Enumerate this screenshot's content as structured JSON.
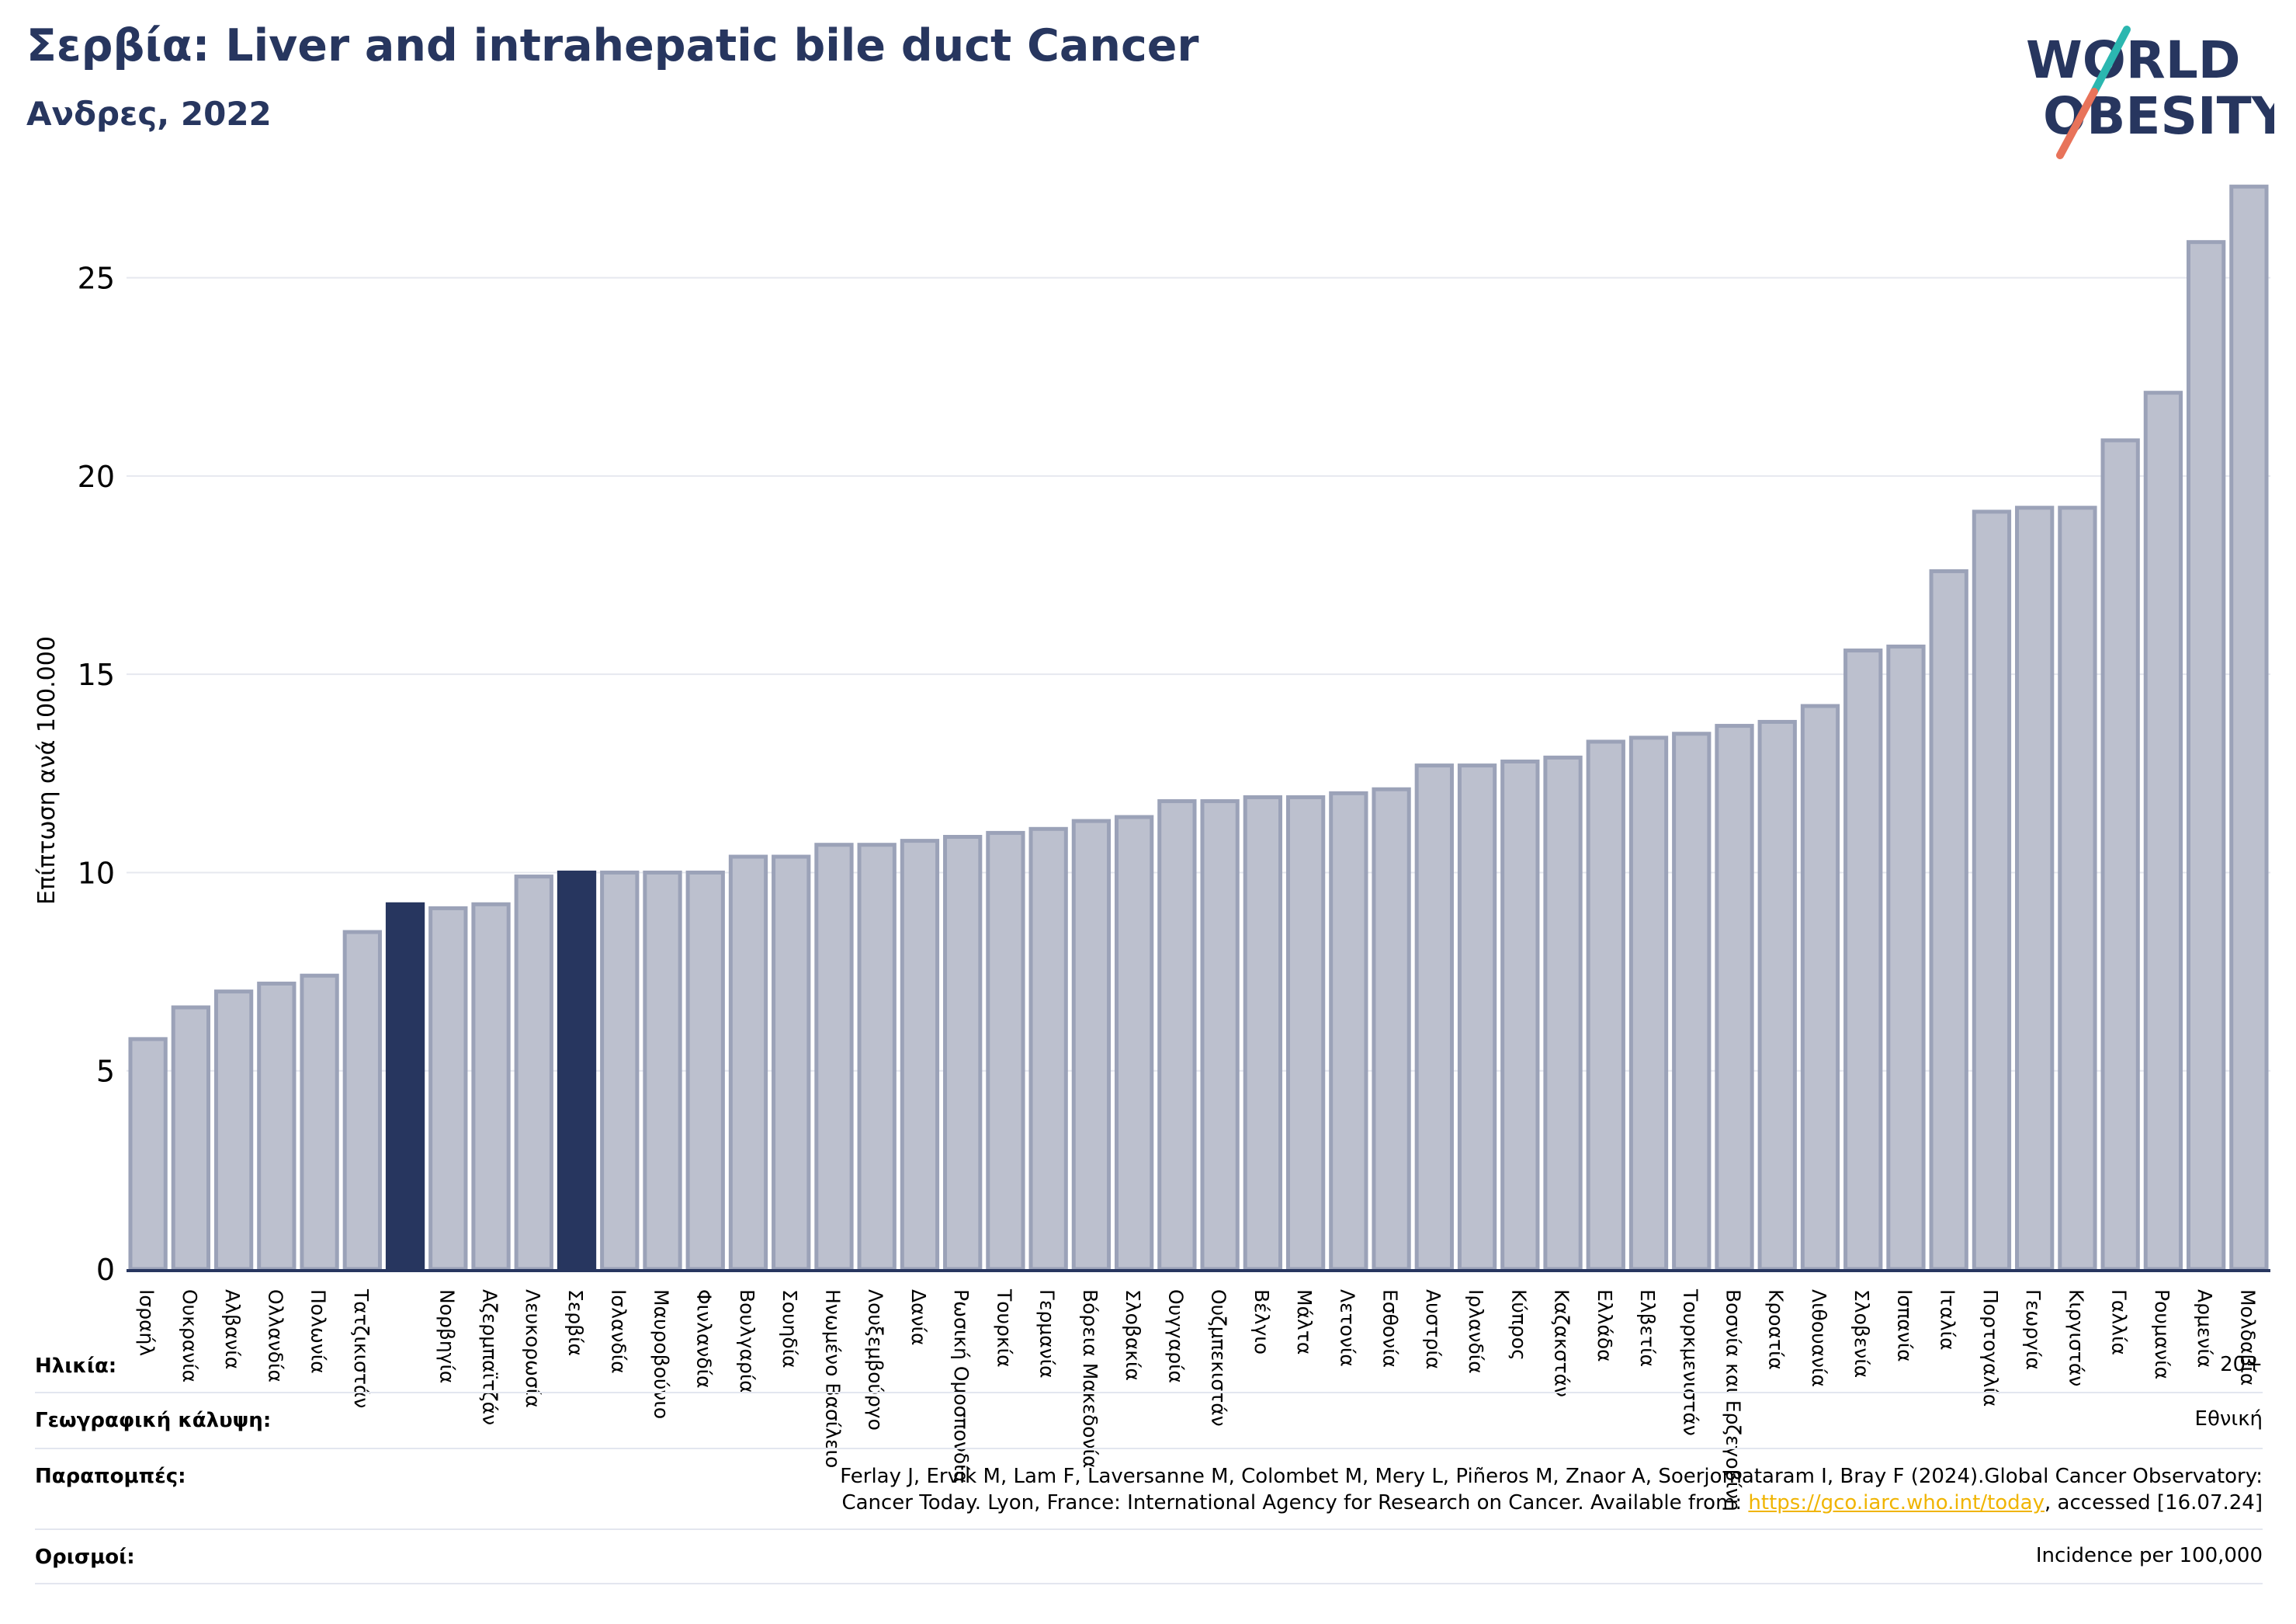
{
  "header": {
    "title": "Σερβία: Liver and intrahepatic bile duct Cancer",
    "subtitle": "Ανδρες, 2022"
  },
  "logo": {
    "line1": "WORLD",
    "line2": "OBESITY"
  },
  "colors": {
    "highlight": "#27365f",
    "bar_fill": "#bcc0ce",
    "bar_stroke": "#9ba2b8",
    "grid": "#e6e8ef",
    "logo_teal": "#2bb7b0",
    "logo_coral": "#e8735a"
  },
  "chart_data": {
    "type": "bar",
    "title": "",
    "xlabel": "",
    "ylabel": "Επίπτωση ανά 100.000",
    "ylim": [
      0,
      27.5
    ],
    "yticks": [
      0,
      5,
      10,
      15,
      20,
      25
    ],
    "grid": true,
    "categories": [
      "Ισραήλ",
      "Ουκρανία",
      "Αλβανία",
      "Ολλανδία",
      "Πολωνία",
      "Τατζικιστάν",
      "",
      "Νορβηγία",
      "Αζερμπαϊτζάν",
      "Λευκορωσία",
      "Σερβία",
      "Ισλανδία",
      "Μαυροβούνιο",
      "Φινλανδία",
      "Βουλγαρία",
      "Σουηδία",
      "Ηνωμένο Βασίλειο",
      "Λουξεμβούργο",
      "Δανία",
      "Ρωσική Ομοσπονδία",
      "Τουρκία",
      "Γερμανία",
      "Βόρεια Μακεδονία",
      "Σλοβακία",
      "Ουγγαρία",
      "Ουζμπεκιστάν",
      "Βέλγιο",
      "Μάλτα",
      "Λετονία",
      "Εσθονία",
      "Αυστρία",
      "Ιρλανδία",
      "Κύπρος",
      "Καζακστάν",
      "Ελλάδα",
      "Ελβετία",
      "Τουρκμενιστάν",
      "Βοσνία και Ερζεγοβίνη",
      "Κροατία",
      "Λιθουανία",
      "Σλοβενία",
      "Ισπανία",
      "Ιταλία",
      "Πορτογαλία",
      "Γεωργία",
      "Κιργιστάν",
      "Γαλλία",
      "Ρουμανία",
      "Αρμενία",
      "Μολδαβία"
    ],
    "values": [
      5.8,
      6.6,
      7.0,
      7.2,
      7.4,
      8.5,
      9.2,
      9.1,
      9.2,
      9.9,
      10.0,
      10.0,
      10.0,
      10.0,
      10.4,
      10.4,
      10.7,
      10.7,
      10.8,
      10.9,
      11.0,
      11.1,
      11.3,
      11.4,
      11.8,
      11.8,
      11.9,
      11.9,
      12.0,
      12.1,
      12.7,
      12.7,
      12.8,
      12.9,
      13.3,
      13.4,
      13.5,
      13.7,
      13.8,
      14.2,
      15.6,
      15.7,
      17.6,
      19.1,
      19.2,
      19.2,
      20.9,
      22.1,
      25.9,
      27.3
    ],
    "highlighted_indices": [
      6,
      10
    ]
  },
  "footer": {
    "age_label": "Ηλικία:",
    "age_value": "20+",
    "coverage_label": "Γεωγραφική κάλυψη:",
    "coverage_value": "Εθνική",
    "refs_label": "Παραπομπές:",
    "refs_line1": "Ferlay J, Ervik M, Lam F, Laversanne M, Colombet M, Mery L, Piñeros M, Znaor A, Soerjomataram I, Bray F (2024).Global Cancer Observatory:",
    "refs_line2_pre": "Cancer Today. Lyon, France: International Agency for Research on Cancer. Available from: ",
    "refs_link": "https://gco.iarc.who.int/today",
    "refs_line2_post": ", accessed [16.07.24]",
    "defs_label": "Ορισμοί:",
    "defs_value": "Incidence per 100,000"
  }
}
